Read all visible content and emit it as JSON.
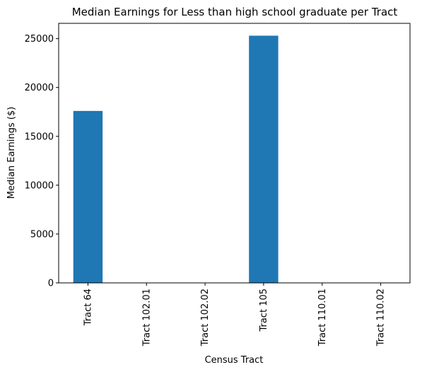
{
  "chart_data": {
    "type": "bar",
    "title": "Median Earnings for Less than high school graduate per Tract",
    "xlabel": "Census Tract",
    "ylabel": "Median Earnings ($)",
    "categories": [
      "Tract 64",
      "Tract 102.01",
      "Tract 102.02",
      "Tract 105",
      "Tract 110.01",
      "Tract 110.02"
    ],
    "values": [
      17600,
      0,
      0,
      25300,
      0,
      0
    ],
    "ylim": [
      0,
      26565
    ],
    "yticks": [
      0,
      5000,
      10000,
      15000,
      20000,
      25000
    ],
    "ytick_labels": [
      "0",
      "5000",
      "10000",
      "15000",
      "20000",
      "25000"
    ],
    "bar_color": "#1f77b4",
    "grid": false
  }
}
